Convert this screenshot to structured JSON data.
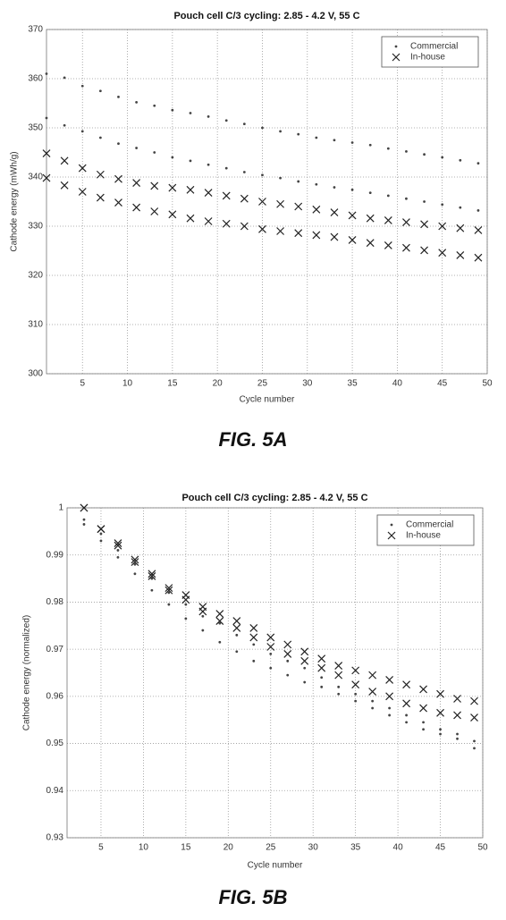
{
  "chart_data": [
    {
      "type": "scatter",
      "title": "Pouch cell C/3 cycling: 2.85 - 4.2 V, 55 C",
      "x_label": "Cycle number",
      "y_label": "Cathode energy (mWh/g)",
      "caption": "FIG. 5A",
      "xlim": [
        1,
        50
      ],
      "ylim": [
        300,
        370
      ],
      "xticks": [
        5,
        10,
        15,
        20,
        25,
        30,
        35,
        40,
        45,
        50
      ],
      "yticks": [
        300,
        310,
        320,
        330,
        340,
        350,
        360,
        370
      ],
      "grid": true,
      "legend": "upper right",
      "series": [
        {
          "name": "Commercial",
          "marker": "dot",
          "color": "#444444",
          "x": [
            1,
            3,
            5,
            7,
            9,
            11,
            13,
            15,
            17,
            19,
            21,
            23,
            25,
            27,
            29,
            31,
            33,
            35,
            37,
            39,
            41,
            43,
            45,
            47,
            49,
            1,
            3,
            5,
            7,
            9,
            11,
            13,
            15,
            17,
            19,
            21,
            23,
            25,
            27,
            29,
            31,
            33,
            35,
            37,
            39,
            41,
            43,
            45,
            47,
            49
          ],
          "values": [
            361,
            360.2,
            358.5,
            357.5,
            356.3,
            355.2,
            354.5,
            353.6,
            353,
            352.3,
            351.5,
            350.8,
            350,
            349.3,
            348.7,
            348,
            347.5,
            347,
            346.5,
            345.8,
            345.2,
            344.6,
            344,
            343.4,
            342.8,
            352,
            350.5,
            349.3,
            348,
            346.8,
            345.9,
            345,
            344,
            343.3,
            342.5,
            341.8,
            341,
            340.4,
            339.8,
            339.1,
            338.5,
            337.9,
            337.4,
            336.8,
            336.2,
            335.6,
            335,
            334.4,
            333.8,
            333.2
          ]
        },
        {
          "name": "In-house",
          "marker": "cross",
          "color": "#222222",
          "x": [
            1,
            3,
            5,
            7,
            9,
            11,
            13,
            15,
            17,
            19,
            21,
            23,
            25,
            27,
            29,
            31,
            33,
            35,
            37,
            39,
            41,
            43,
            45,
            47,
            49,
            1,
            3,
            5,
            7,
            9,
            11,
            13,
            15,
            17,
            19,
            21,
            23,
            25,
            27,
            29,
            31,
            33,
            35,
            37,
            39,
            41,
            43,
            45,
            47,
            49
          ],
          "values": [
            344.8,
            343.3,
            341.8,
            340.5,
            339.6,
            338.8,
            338.2,
            337.8,
            337.4,
            336.8,
            336.2,
            335.6,
            335,
            334.5,
            334,
            333.4,
            332.8,
            332.2,
            331.6,
            331.2,
            330.8,
            330.4,
            330,
            329.6,
            329.2,
            339.8,
            338.3,
            337,
            335.8,
            334.8,
            333.8,
            333,
            332.4,
            331.6,
            331,
            330.5,
            330,
            329.4,
            329,
            328.6,
            328.2,
            327.8,
            327.2,
            326.6,
            326.1,
            325.6,
            325.1,
            324.6,
            324.1,
            323.6
          ]
        }
      ]
    },
    {
      "type": "scatter",
      "title": "Pouch cell C/3 cycling: 2.85 - 4.2 V, 55 C",
      "x_label": "Cycle number",
      "y_label": "Cathode energy (normalized)",
      "caption": "FIG. 5B",
      "xlim": [
        1,
        50
      ],
      "ylim": [
        0.93,
        1
      ],
      "xticks": [
        5,
        10,
        15,
        20,
        25,
        30,
        35,
        40,
        45,
        50
      ],
      "yticks": [
        0.93,
        0.94,
        0.95,
        0.96,
        0.97,
        0.98,
        0.99,
        1
      ],
      "grid": true,
      "legend": "upper right",
      "series": [
        {
          "name": "Commercial",
          "marker": "dot",
          "color": "#444444",
          "x": [
            3,
            5,
            7,
            9,
            11,
            13,
            15,
            17,
            19,
            21,
            23,
            25,
            27,
            29,
            31,
            33,
            35,
            37,
            39,
            41,
            43,
            45,
            47,
            49,
            3,
            5,
            7,
            9,
            11,
            13,
            15,
            17,
            19,
            21,
            23,
            25,
            27,
            29,
            31,
            33,
            35,
            37,
            39,
            41,
            43,
            45,
            47,
            49
          ],
          "values": [
            0.9975,
            0.9945,
            0.991,
            0.988,
            0.985,
            0.982,
            0.9795,
            0.977,
            0.9755,
            0.973,
            0.971,
            0.969,
            0.9675,
            0.966,
            0.964,
            0.962,
            0.9605,
            0.959,
            0.9575,
            0.956,
            0.9545,
            0.953,
            0.952,
            0.9505,
            0.9965,
            0.993,
            0.9895,
            0.986,
            0.9825,
            0.9795,
            0.9765,
            0.974,
            0.9715,
            0.9695,
            0.9675,
            0.966,
            0.9645,
            0.963,
            0.962,
            0.9605,
            0.959,
            0.9575,
            0.956,
            0.9545,
            0.953,
            0.952,
            0.951,
            0.949
          ]
        },
        {
          "name": "In-house",
          "marker": "cross",
          "color": "#222222",
          "x": [
            3,
            5,
            7,
            9,
            11,
            13,
            15,
            17,
            19,
            21,
            23,
            25,
            27,
            29,
            31,
            33,
            35,
            37,
            39,
            41,
            43,
            45,
            47,
            49,
            3,
            5,
            7,
            9,
            11,
            13,
            15,
            17,
            19,
            21,
            23,
            25,
            27,
            29,
            31,
            33,
            35,
            37,
            39,
            41,
            43,
            45,
            47,
            49
          ],
          "values": [
            1.0,
            0.9955,
            0.9925,
            0.989,
            0.986,
            0.983,
            0.9815,
            0.979,
            0.9775,
            0.976,
            0.9745,
            0.9725,
            0.971,
            0.9695,
            0.968,
            0.9665,
            0.9655,
            0.9645,
            0.9635,
            0.9625,
            0.9615,
            0.9605,
            0.9595,
            0.959,
            1.0,
            0.9955,
            0.992,
            0.9885,
            0.9855,
            0.9825,
            0.9805,
            0.978,
            0.976,
            0.9745,
            0.9725,
            0.9705,
            0.969,
            0.9675,
            0.966,
            0.9645,
            0.9625,
            0.961,
            0.96,
            0.9585,
            0.9575,
            0.9565,
            0.956,
            0.9555
          ]
        }
      ]
    }
  ]
}
